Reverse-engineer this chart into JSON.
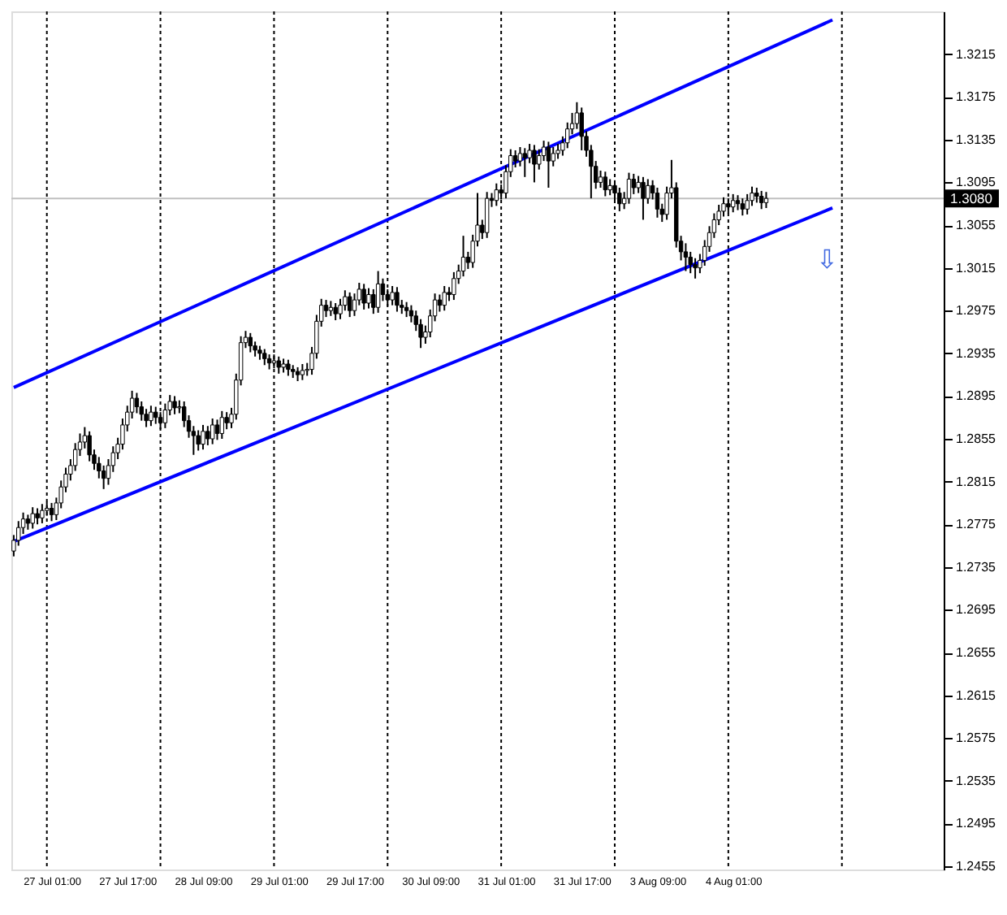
{
  "chart_data": {
    "type": "candlestick",
    "color": "#000000",
    "categories": [
      null,
      null,
      null,
      null,
      null,
      null,
      null,
      null,
      "27 Jul 01:00",
      null,
      null,
      null,
      null,
      null,
      null,
      null,
      null,
      null,
      null,
      null,
      null,
      null,
      null,
      null,
      "27 Jul 17:00",
      null,
      null,
      null,
      null,
      null,
      null,
      null,
      null,
      null,
      null,
      null,
      null,
      null,
      null,
      null,
      "28 Jul 09:00",
      null,
      null,
      null,
      null,
      null,
      null,
      null,
      null,
      null,
      null,
      null,
      null,
      null,
      null,
      null,
      "29 Jul 01:00",
      null,
      null,
      null,
      null,
      null,
      null,
      null,
      null,
      null,
      null,
      null,
      null,
      null,
      null,
      null,
      "29 Jul 17:00",
      null,
      null,
      null,
      null,
      null,
      null,
      null,
      null,
      null,
      null,
      null,
      null,
      null,
      null,
      null,
      "30 Jul 09:00",
      null,
      null,
      null,
      null,
      null,
      null,
      null,
      null,
      null,
      null,
      null,
      null,
      null,
      null,
      null,
      "31 Jul 01:00",
      null,
      null,
      null,
      null,
      null,
      null,
      null,
      null,
      null,
      null,
      null,
      null,
      null,
      null,
      null,
      "31 Jul 17:00",
      null,
      null,
      null,
      null,
      null,
      null,
      null,
      null,
      null,
      null,
      null,
      null,
      null,
      null,
      null,
      "3 Aug 09:00",
      null,
      null,
      null,
      null,
      null,
      null,
      null,
      null,
      null,
      null,
      null,
      null,
      null,
      null,
      null,
      "4 Aug 01:00",
      null,
      null,
      null,
      null,
      null,
      null,
      null,
      null,
      null,
      null,
      null,
      null,
      null,
      null,
      null,
      null,
      null,
      null,
      null,
      null,
      null,
      null,
      null,
      null,
      null,
      null,
      null,
      null,
      null,
      null,
      null,
      null,
      null,
      null,
      null,
      null,
      null,
      null,
      null,
      null,
      null,
      null,
      null,
      null
    ],
    "ohlc": [
      [
        1.275,
        1.2765,
        1.2745,
        1.276
      ],
      [
        1.276,
        1.2778,
        1.2755,
        1.2772
      ],
      [
        1.2772,
        1.2786,
        1.2766,
        1.278
      ],
      [
        1.278,
        1.2784,
        1.277,
        1.2776
      ],
      [
        1.2776,
        1.2791,
        1.2771,
        1.2785
      ],
      [
        1.2785,
        1.279,
        1.2775,
        1.2781
      ],
      [
        1.2781,
        1.2794,
        1.2776,
        1.2788
      ],
      [
        1.2788,
        1.2796,
        1.2783,
        1.279
      ],
      [
        1.279,
        1.2795,
        1.2778,
        1.2784
      ],
      [
        1.2784,
        1.28,
        1.2779,
        1.2795
      ],
      [
        1.2795,
        1.2816,
        1.279,
        1.281
      ],
      [
        1.281,
        1.2828,
        1.2805,
        1.2822
      ],
      [
        1.2822,
        1.2836,
        1.2816,
        1.283
      ],
      [
        1.283,
        1.2851,
        1.2825,
        1.2845
      ],
      [
        1.2845,
        1.286,
        1.2839,
        1.2852
      ],
      [
        1.2852,
        1.2866,
        1.2846,
        1.2858
      ],
      [
        1.2858,
        1.2862,
        1.2834,
        1.284
      ],
      [
        1.284,
        1.2845,
        1.2826,
        1.2832
      ],
      [
        1.2832,
        1.2838,
        1.2818,
        1.2825
      ],
      [
        1.2825,
        1.283,
        1.2808,
        1.2818
      ],
      [
        1.2818,
        1.2836,
        1.2812,
        1.283
      ],
      [
        1.283,
        1.2848,
        1.2824,
        1.2842
      ],
      [
        1.2842,
        1.2856,
        1.2836,
        1.285
      ],
      [
        1.285,
        1.2874,
        1.2845,
        1.2868
      ],
      [
        1.2868,
        1.2886,
        1.2862,
        1.288
      ],
      [
        1.288,
        1.29,
        1.2874,
        1.2893
      ],
      [
        1.2893,
        1.2898,
        1.2879,
        1.2885
      ],
      [
        1.2885,
        1.289,
        1.2872,
        1.2878
      ],
      [
        1.2878,
        1.2883,
        1.2866,
        1.2872
      ],
      [
        1.2872,
        1.2886,
        1.2867,
        1.288
      ],
      [
        1.288,
        1.2885,
        1.2869,
        1.2875
      ],
      [
        1.2875,
        1.288,
        1.2864,
        1.287
      ],
      [
        1.287,
        1.2888,
        1.2865,
        1.2882
      ],
      [
        1.2882,
        1.2896,
        1.2877,
        1.289
      ],
      [
        1.289,
        1.2895,
        1.2878,
        1.2884
      ],
      [
        1.2884,
        1.2891,
        1.2879,
        1.2885
      ],
      [
        1.2885,
        1.289,
        1.2866,
        1.2872
      ],
      [
        1.2872,
        1.2877,
        1.2856,
        1.2862
      ],
      [
        1.2862,
        1.2867,
        1.284,
        1.2858
      ],
      [
        1.2858,
        1.2863,
        1.2844,
        1.285
      ],
      [
        1.285,
        1.2868,
        1.2845,
        1.2862
      ],
      [
        1.2862,
        1.2867,
        1.2849,
        1.2855
      ],
      [
        1.2855,
        1.2874,
        1.285,
        1.2868
      ],
      [
        1.2868,
        1.2873,
        1.2854,
        1.286
      ],
      [
        1.286,
        1.2881,
        1.2855,
        1.2875
      ],
      [
        1.2875,
        1.288,
        1.2864,
        1.287
      ],
      [
        1.287,
        1.2884,
        1.2865,
        1.2878
      ],
      [
        1.2878,
        1.2916,
        1.2873,
        1.291
      ],
      [
        1.291,
        1.2951,
        1.2905,
        1.2945
      ],
      [
        1.2945,
        1.2956,
        1.294,
        1.295
      ],
      [
        1.295,
        1.2954,
        1.2936,
        1.2942
      ],
      [
        1.2942,
        1.2946,
        1.2932,
        1.2938
      ],
      [
        1.2938,
        1.2942,
        1.2929,
        1.2935
      ],
      [
        1.2935,
        1.2939,
        1.2924,
        1.293
      ],
      [
        1.293,
        1.2934,
        1.292,
        1.2926
      ],
      [
        1.2926,
        1.2934,
        1.2921,
        1.2928
      ],
      [
        1.2928,
        1.2932,
        1.2916,
        1.2922
      ],
      [
        1.2922,
        1.293,
        1.2917,
        1.2925
      ],
      [
        1.2925,
        1.2929,
        1.2914,
        1.292
      ],
      [
        1.292,
        1.2924,
        1.2912,
        1.2918
      ],
      [
        1.2918,
        1.2922,
        1.2909,
        1.2915
      ],
      [
        1.2915,
        1.2925,
        1.291,
        1.2919
      ],
      [
        1.2919,
        1.2926,
        1.2914,
        1.292
      ],
      [
        1.292,
        1.2941,
        1.2915,
        1.2935
      ],
      [
        1.2935,
        1.2971,
        1.293,
        1.2965
      ],
      [
        1.2965,
        1.2986,
        1.296,
        1.298
      ],
      [
        1.298,
        1.2985,
        1.2969,
        1.2975
      ],
      [
        1.2975,
        1.2984,
        1.297,
        1.2978
      ],
      [
        1.2978,
        1.2982,
        1.2966,
        1.2972
      ],
      [
        1.2972,
        1.2986,
        1.2967,
        1.298
      ],
      [
        1.298,
        1.2994,
        1.2975,
        1.2988
      ],
      [
        1.2988,
        1.2992,
        1.2969,
        1.2975
      ],
      [
        1.2975,
        1.2991,
        1.297,
        1.2985
      ],
      [
        1.2985,
        1.3001,
        1.298,
        1.2995
      ],
      [
        1.2995,
        1.3,
        1.2976,
        1.2982
      ],
      [
        1.2982,
        1.2996,
        1.2977,
        1.299
      ],
      [
        1.299,
        1.2995,
        1.2972,
        1.2978
      ],
      [
        1.2978,
        1.3012,
        1.2973,
        1.3
      ],
      [
        1.3,
        1.3005,
        1.2984,
        1.299
      ],
      [
        1.299,
        1.2995,
        1.2979,
        1.2985
      ],
      [
        1.2985,
        1.2998,
        1.298,
        1.2992
      ],
      [
        1.2992,
        1.2997,
        1.2974,
        1.298
      ],
      [
        1.298,
        1.2985,
        1.2972,
        1.2978
      ],
      [
        1.2978,
        1.2983,
        1.2969,
        1.2975
      ],
      [
        1.2975,
        1.298,
        1.2964,
        1.297
      ],
      [
        1.297,
        1.2975,
        1.2956,
        1.2962
      ],
      [
        1.2962,
        1.2967,
        1.294,
        1.295
      ],
      [
        1.295,
        1.2961,
        1.2944,
        1.2955
      ],
      [
        1.2955,
        1.2976,
        1.295,
        1.297
      ],
      [
        1.297,
        1.2991,
        1.2965,
        1.2985
      ],
      [
        1.2985,
        1.299,
        1.2974,
        1.298
      ],
      [
        1.298,
        1.2998,
        1.2975,
        1.2992
      ],
      [
        1.2992,
        1.2997,
        1.2984,
        1.299
      ],
      [
        1.299,
        1.3011,
        1.2985,
        1.3005
      ],
      [
        1.3005,
        1.3018,
        1.3,
        1.3012
      ],
      [
        1.3012,
        1.3045,
        1.3007,
        1.3025
      ],
      [
        1.3025,
        1.303,
        1.3014,
        1.302
      ],
      [
        1.302,
        1.3046,
        1.3015,
        1.304
      ],
      [
        1.304,
        1.3085,
        1.3035,
        1.3055
      ],
      [
        1.3055,
        1.306,
        1.3042,
        1.3048
      ],
      [
        1.3048,
        1.3086,
        1.3043,
        1.308
      ],
      [
        1.308,
        1.3085,
        1.3072,
        1.3078
      ],
      [
        1.3078,
        1.3094,
        1.3073,
        1.3088
      ],
      [
        1.3088,
        1.3093,
        1.3079,
        1.3085
      ],
      [
        1.3085,
        1.3111,
        1.308,
        1.3105
      ],
      [
        1.3105,
        1.3126,
        1.31,
        1.312
      ],
      [
        1.312,
        1.3125,
        1.3109,
        1.3115
      ],
      [
        1.3115,
        1.3128,
        1.311,
        1.3122
      ],
      [
        1.3122,
        1.3127,
        1.31,
        1.3118
      ],
      [
        1.3118,
        1.3131,
        1.3113,
        1.3125
      ],
      [
        1.3125,
        1.313,
        1.3095,
        1.3112
      ],
      [
        1.3112,
        1.3126,
        1.3107,
        1.312
      ],
      [
        1.312,
        1.3134,
        1.3115,
        1.3128
      ],
      [
        1.3128,
        1.3133,
        1.309,
        1.3115
      ],
      [
        1.3115,
        1.3128,
        1.311,
        1.3122
      ],
      [
        1.3122,
        1.3131,
        1.3117,
        1.3125
      ],
      [
        1.3125,
        1.3138,
        1.312,
        1.3132
      ],
      [
        1.3132,
        1.3151,
        1.3127,
        1.3145
      ],
      [
        1.3145,
        1.316,
        1.314,
        1.315
      ],
      [
        1.315,
        1.317,
        1.3145,
        1.316
      ],
      [
        1.316,
        1.3165,
        1.3125,
        1.3138
      ],
      [
        1.3138,
        1.3143,
        1.3119,
        1.3125
      ],
      [
        1.3125,
        1.313,
        1.308,
        1.311
      ],
      [
        1.311,
        1.3115,
        1.3089,
        1.3095
      ],
      [
        1.3095,
        1.3106,
        1.309,
        1.31
      ],
      [
        1.31,
        1.3105,
        1.3082,
        1.3088
      ],
      [
        1.3088,
        1.3098,
        1.3083,
        1.3092
      ],
      [
        1.3092,
        1.3097,
        1.3078,
        1.3085
      ],
      [
        1.3085,
        1.309,
        1.3068,
        1.3075
      ],
      [
        1.3075,
        1.3086,
        1.307,
        1.308
      ],
      [
        1.308,
        1.3104,
        1.3075,
        1.3098
      ],
      [
        1.3098,
        1.3103,
        1.3084,
        1.309
      ],
      [
        1.309,
        1.3101,
        1.3085,
        1.3095
      ],
      [
        1.3095,
        1.31,
        1.306,
        1.308
      ],
      [
        1.308,
        1.3098,
        1.3075,
        1.3092
      ],
      [
        1.3092,
        1.3097,
        1.3079,
        1.3085
      ],
      [
        1.3085,
        1.309,
        1.3062,
        1.307
      ],
      [
        1.307,
        1.3075,
        1.3058,
        1.3065
      ],
      [
        1.3065,
        1.3091,
        1.306,
        1.3085
      ],
      [
        1.3085,
        1.3116,
        1.308,
        1.309
      ],
      [
        1.309,
        1.3095,
        1.3034,
        1.304
      ],
      [
        1.304,
        1.3045,
        1.3022,
        1.303
      ],
      [
        1.303,
        1.3038,
        1.3012,
        1.3025
      ],
      [
        1.3025,
        1.303,
        1.301,
        1.3018
      ],
      [
        1.3018,
        1.3024,
        1.3005,
        1.3015
      ],
      [
        1.3015,
        1.3028,
        1.301,
        1.3022
      ],
      [
        1.3022,
        1.3041,
        1.3017,
        1.3035
      ],
      [
        1.3035,
        1.3054,
        1.303,
        1.3048
      ],
      [
        1.3048,
        1.3066,
        1.3043,
        1.306
      ],
      [
        1.306,
        1.3074,
        1.3055,
        1.3068
      ],
      [
        1.3068,
        1.3081,
        1.3063,
        1.3075
      ],
      [
        1.3075,
        1.308,
        1.3066,
        1.3072
      ],
      [
        1.3072,
        1.3084,
        1.3067,
        1.3078
      ],
      [
        1.3078,
        1.3083,
        1.3069,
        1.3075
      ],
      [
        1.3075,
        1.308,
        1.3064,
        1.307
      ],
      [
        1.307,
        1.3084,
        1.3065,
        1.3078
      ],
      [
        1.3078,
        1.3091,
        1.3073,
        1.3085
      ],
      [
        1.3085,
        1.309,
        1.3076,
        1.3082
      ],
      [
        1.3082,
        1.3087,
        1.307,
        1.3076
      ],
      [
        1.3076,
        1.3086,
        1.3071,
        1.308
      ],
      null,
      null,
      null,
      null,
      null,
      null,
      null,
      null,
      null,
      null,
      null,
      null,
      null,
      null,
      null,
      null,
      null,
      null,
      null,
      null,
      null,
      null,
      null,
      null,
      null,
      null,
      null,
      null,
      null,
      null,
      null,
      null,
      null,
      null,
      null,
      null,
      null
    ],
    "series": [
      {
        "type": "line",
        "color": "#0000ff",
        "values": [
          1.2903,
          null,
          null,
          null,
          null,
          null,
          null,
          null,
          null,
          null,
          null,
          null,
          null,
          null,
          null,
          null,
          null,
          null,
          null,
          null,
          null,
          null,
          null,
          null,
          null,
          null,
          null,
          null,
          null,
          null,
          null,
          null,
          null,
          null,
          null,
          null,
          null,
          null,
          null,
          null,
          null,
          null,
          null,
          null,
          null,
          null,
          null,
          null,
          null,
          null,
          null,
          null,
          null,
          null,
          null,
          null,
          null,
          null,
          null,
          null,
          null,
          null,
          null,
          null,
          null,
          null,
          null,
          null,
          null,
          null,
          null,
          null,
          null,
          null,
          null,
          null,
          null,
          null,
          null,
          null,
          null,
          null,
          null,
          null,
          null,
          null,
          null,
          null,
          null,
          null,
          null,
          null,
          null,
          null,
          null,
          null,
          null,
          null,
          null,
          null,
          null,
          null,
          null,
          null,
          null,
          null,
          null,
          null,
          null,
          null,
          null,
          null,
          null,
          null,
          null,
          null,
          null,
          null,
          null,
          null,
          null,
          null,
          null,
          null,
          null,
          null,
          null,
          null,
          null,
          null,
          null,
          null,
          null,
          null,
          null,
          null,
          null,
          null,
          null,
          null,
          null,
          null,
          null,
          null,
          null,
          null,
          null,
          null,
          null,
          null,
          null,
          null,
          null,
          null,
          null,
          null,
          null,
          null,
          null,
          null,
          null,
          null,
          null,
          null,
          null,
          null,
          null,
          null,
          null,
          null,
          null,
          null,
          null,
          1.3247,
          null,
          null,
          null,
          null,
          null,
          null,
          null,
          null,
          null,
          null,
          null,
          null,
          null,
          null,
          null,
          null,
          null,
          null,
          null,
          null,
          null,
          null,
          null
        ]
      },
      {
        "type": "line",
        "color": "#0000ff",
        "values": [
          1.2759,
          null,
          null,
          null,
          null,
          null,
          null,
          null,
          null,
          null,
          null,
          null,
          null,
          null,
          null,
          null,
          null,
          null,
          null,
          null,
          null,
          null,
          null,
          null,
          null,
          null,
          null,
          null,
          null,
          null,
          null,
          null,
          null,
          null,
          null,
          null,
          null,
          null,
          null,
          null,
          null,
          null,
          null,
          null,
          null,
          null,
          null,
          null,
          null,
          null,
          null,
          null,
          null,
          null,
          null,
          null,
          null,
          null,
          null,
          null,
          null,
          null,
          null,
          null,
          null,
          null,
          null,
          null,
          null,
          null,
          null,
          null,
          null,
          null,
          null,
          null,
          null,
          null,
          null,
          null,
          null,
          null,
          null,
          null,
          null,
          null,
          null,
          null,
          null,
          null,
          null,
          null,
          null,
          null,
          null,
          null,
          null,
          null,
          null,
          null,
          null,
          null,
          null,
          null,
          null,
          null,
          null,
          null,
          null,
          null,
          null,
          null,
          null,
          null,
          null,
          null,
          null,
          null,
          null,
          null,
          null,
          null,
          null,
          null,
          null,
          null,
          null,
          null,
          null,
          null,
          null,
          null,
          null,
          null,
          null,
          null,
          null,
          null,
          null,
          null,
          null,
          null,
          null,
          null,
          null,
          null,
          null,
          null,
          null,
          null,
          null,
          null,
          null,
          null,
          null,
          null,
          null,
          null,
          null,
          null,
          null,
          null,
          null,
          null,
          null,
          null,
          null,
          null,
          null,
          null,
          null,
          null,
          null,
          1.3071,
          null,
          null,
          null,
          null,
          null,
          null,
          null,
          null,
          null,
          null,
          null,
          null,
          null,
          null,
          null,
          null,
          null,
          null,
          null,
          null,
          null,
          null,
          null
        ]
      }
    ],
    "ylim": [
      1.2452,
      1.3255
    ],
    "yticks": [
      1.2455,
      1.2495,
      1.2535,
      1.2575,
      1.2615,
      1.2655,
      1.2695,
      1.2735,
      1.2775,
      1.2815,
      1.2855,
      1.2895,
      1.2935,
      1.2975,
      1.3015,
      1.3055,
      1.3095,
      1.3135,
      1.3175,
      1.3215
    ],
    "ref_lines": [
      {
        "axis": "y",
        "value": 1.308,
        "label": "1.3080",
        "color": "#c0c0c0",
        "line_style": "solid"
      }
    ],
    "annotations": [
      "⇩"
    ],
    "grid": false,
    "legend": false
  }
}
